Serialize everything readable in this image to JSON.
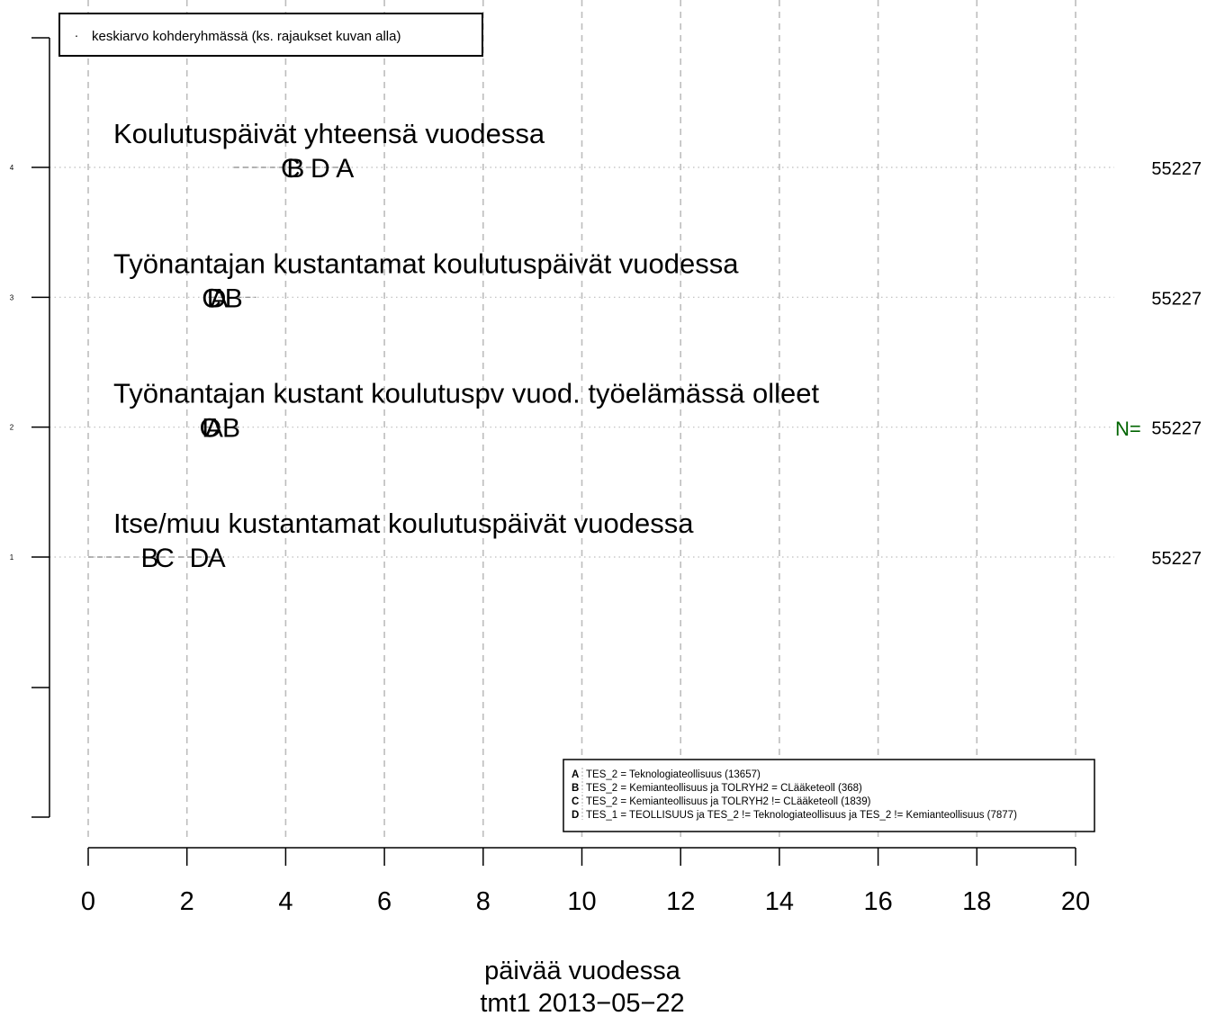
{
  "chart_data": {
    "type": "scatter",
    "xlabel": "päivää vuodessa",
    "caption": "tmt1 2013−05−22",
    "xlim": [
      0,
      20
    ],
    "x_ticks": [
      "0",
      "2",
      "4",
      "6",
      "8",
      "10",
      "12",
      "14",
      "16",
      "18",
      "20"
    ],
    "y_ticks": [
      "1",
      "2",
      "3",
      "4"
    ],
    "grid": true,
    "legend_top": {
      "position": "top-left",
      "marker": "·",
      "text": "keskiarvo kohderyhmässä (ks. rajaukset kuvan alla)"
    },
    "legend_groups": {
      "position": "bottom-right",
      "items": [
        {
          "key": "A",
          "text": "TES_2 = Teknologiateollisuus (13657)"
        },
        {
          "key": "B",
          "text": "TES_2 = Kemianteollisuus ja TOLRYH2 = CLääketeoll (368)"
        },
        {
          "key": "C",
          "text": "TES_2 = Kemianteollisuus ja TOLRYH2 != CLääketeoll (1839)"
        },
        {
          "key": "D",
          "text": "TES_1 = TEOLLISUUS ja  TES_2 != Teknologiateollisuus ja TES_2 != Kemianteollisuus (7877)"
        }
      ]
    },
    "n_label": "N=",
    "rows": [
      {
        "y": 4,
        "title": "Koulutuspäivät yhteensä vuodessa",
        "n": "55227",
        "range": [
          2.95,
          5.3
        ],
        "points": [
          {
            "label": "C",
            "x": 4.1
          },
          {
            "label": "B",
            "x": 4.2
          },
          {
            "label": "D",
            "x": 4.7
          },
          {
            "label": "A",
            "x": 5.2
          }
        ]
      },
      {
        "y": 3,
        "title": "Työnantajan kustantamat koulutuspäivät vuodessa",
        "n": "55227",
        "range": [
          2.45,
          3.4
        ],
        "points": [
          {
            "label": "C",
            "x": 2.5
          },
          {
            "label": "D",
            "x": 2.6
          },
          {
            "label": "A",
            "x": 2.65
          },
          {
            "label": "B",
            "x": 2.95
          }
        ]
      },
      {
        "y": 2,
        "title": "Työnantajan kustant koulutuspv vuod. työelämässä olleet",
        "n": "55227",
        "range": [
          2.4,
          3.1
        ],
        "points": [
          {
            "label": "C",
            "x": 2.45
          },
          {
            "label": "D",
            "x": 2.5
          },
          {
            "label": "A",
            "x": 2.55
          },
          {
            "label": "B",
            "x": 2.9
          }
        ]
      },
      {
        "y": 1,
        "title": "Itse/muu kustantamat koulutuspäivät vuodessa",
        "n": "55227",
        "range": [
          0,
          2.75
        ],
        "points": [
          {
            "label": "B",
            "x": 1.25
          },
          {
            "label": "C",
            "x": 1.55
          },
          {
            "label": "D",
            "x": 2.25
          },
          {
            "label": "A",
            "x": 2.6
          }
        ]
      }
    ],
    "colors": {
      "n_label": "#006400",
      "grid": "#bdbdbd",
      "range": "#888888",
      "text": "#000000"
    }
  }
}
